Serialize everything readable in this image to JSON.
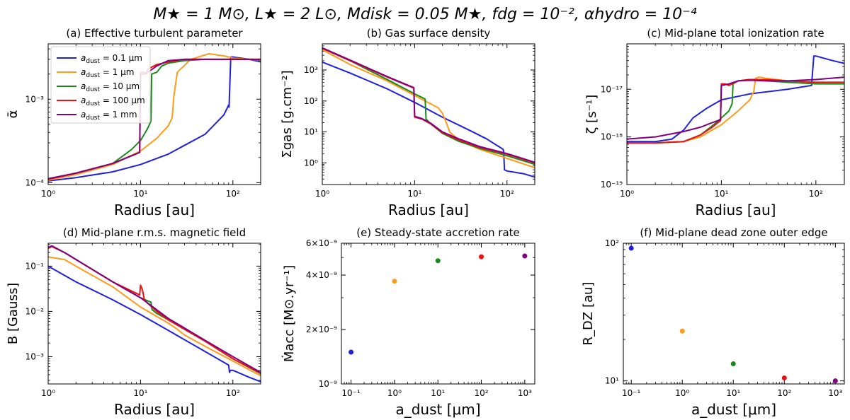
{
  "figure": {
    "suptitle": "M★ = 1 M⊙, L★ = 2 L⊙, Mdisk = 0.05 M★, fdg = 10⁻², αhydro = 10⁻⁴"
  },
  "legend": {
    "entries": [
      "a_dust = 0.1 μm",
      "a_dust = 1 μm",
      "a_dust = 10 μm",
      "a_dust = 100 μm",
      "a_dust = 1 mm"
    ],
    "prefix": "a",
    "subscript": "dust",
    "values": [
      " = 0.1 μm",
      " = 1 μm",
      " = 10 μm",
      " = 100 μm",
      " = 1 mm"
    ],
    "location": "upper-left of panel (a)"
  },
  "colors": {
    "0.1um": "#1f1fe0",
    "1um": "#ff9a1a",
    "10um": "#1a8a1a",
    "100um": "#ee1111",
    "1mm": "#800080"
  },
  "chart_data": [
    {
      "type": "line",
      "title": "(a) Effective turbulent parameter",
      "xlabel": "Radius [au]",
      "ylabel": "ᾱ",
      "xscale": "log",
      "yscale": "log",
      "xlim": [
        1,
        200
      ],
      "ylim": [
        9.5e-05,
        0.0046
      ],
      "xticks": [
        {
          "v": 1,
          "l": "10⁰"
        },
        {
          "v": 10,
          "l": "10¹"
        },
        {
          "v": 100,
          "l": "10²"
        }
      ],
      "yticks": [
        {
          "v": 0.0001,
          "l": "10⁻⁴"
        },
        {
          "v": 0.001,
          "l": "10⁻³"
        }
      ],
      "series": [
        {
          "name": "a_dust = 0.1 μm",
          "color": "#1f1fe0",
          "x": [
            1,
            2,
            5,
            10,
            20,
            50,
            80,
            90,
            91,
            95,
            100,
            150,
            200
          ],
          "y": [
            0.000105,
            0.000115,
            0.000135,
            0.000165,
            0.00022,
            0.00038,
            0.00065,
            0.00085,
            0.0008,
            0.0032,
            0.0032,
            0.003,
            0.0028
          ]
        },
        {
          "name": "a_dust = 1 μm",
          "color": "#ff9a1a",
          "x": [
            1,
            2,
            5,
            10,
            15,
            20,
            22,
            23,
            25,
            35,
            55,
            80,
            100,
            150,
            200
          ],
          "y": [
            0.000107,
            0.000125,
            0.000165,
            0.00024,
            0.00034,
            0.00048,
            0.0006,
            0.0011,
            0.0021,
            0.003,
            0.0035,
            0.0033,
            0.0031,
            0.003,
            0.0029
          ]
        },
        {
          "name": "a_dust = 10 μm",
          "color": "#1a8a1a",
          "x": [
            1,
            2,
            5,
            8,
            10,
            12,
            13,
            13.2,
            15,
            17,
            20,
            30,
            50,
            100,
            150,
            200
          ],
          "y": [
            0.00011,
            0.00013,
            0.00017,
            0.00025,
            0.00032,
            0.00045,
            0.00055,
            0.002,
            0.0021,
            0.0025,
            0.0027,
            0.0029,
            0.003,
            0.003,
            0.003,
            0.0029
          ]
        },
        {
          "name": "a_dust = 100 μm",
          "color": "#ee1111",
          "x": [
            1,
            2,
            5,
            8,
            9.8,
            10,
            11,
            11.5,
            12,
            15,
            20,
            30,
            50,
            100,
            200
          ],
          "y": [
            0.00011,
            0.00013,
            0.00017,
            0.00021,
            0.00023,
            0.0021,
            0.0021,
            0.002,
            0.0023,
            0.0026,
            0.0028,
            0.003,
            0.003,
            0.003,
            0.003
          ]
        },
        {
          "name": "a_dust = 1 mm",
          "color": "#800080",
          "x": [
            1,
            2,
            5,
            8,
            9.8,
            10,
            11,
            12,
            15,
            20,
            30,
            50,
            100,
            200
          ],
          "y": [
            0.000112,
            0.00013,
            0.00017,
            0.00021,
            0.00023,
            0.002,
            0.002,
            0.0021,
            0.0025,
            0.0029,
            0.003,
            0.003,
            0.003,
            0.003
          ]
        }
      ]
    },
    {
      "type": "line",
      "title": "(b) Gas surface density",
      "xlabel": "Radius [au]",
      "ylabel": "Σgas [g.cm⁻²]",
      "xscale": "log",
      "yscale": "log",
      "xlim": [
        1,
        200
      ],
      "ylim": [
        0.2,
        7000
      ],
      "xticks": [
        {
          "v": 1,
          "l": "10⁰"
        },
        {
          "v": 10,
          "l": "10¹"
        },
        {
          "v": 100,
          "l": "10²"
        }
      ],
      "yticks": [
        {
          "v": 1,
          "l": "10⁰"
        },
        {
          "v": 10,
          "l": "10¹"
        },
        {
          "v": 100,
          "l": "10²"
        },
        {
          "v": 1000,
          "l": "10³"
        }
      ],
      "series": [
        {
          "name": "a_dust = 0.1 μm",
          "color": "#1f1fe0",
          "x": [
            1,
            2,
            5,
            10,
            20,
            40,
            60,
            80,
            90,
            92,
            94,
            100,
            150,
            200
          ],
          "y": [
            1800,
            800,
            250,
            90,
            30,
            11,
            6,
            3.5,
            2.8,
            2.5,
            0.6,
            0.55,
            0.45,
            0.35
          ]
        },
        {
          "name": "a_dust = 1 μm",
          "color": "#ff9a1a",
          "x": [
            1,
            2,
            5,
            10,
            15,
            18,
            20,
            22,
            24,
            30,
            50,
            100,
            200
          ],
          "y": [
            4500,
            1500,
            450,
            150,
            80,
            60,
            40,
            20,
            10,
            5.5,
            2.8,
            1.4,
            0.7
          ]
        },
        {
          "name": "a_dust = 10 μm",
          "color": "#1a8a1a",
          "x": [
            1,
            2,
            5,
            10,
            12,
            13,
            13.3,
            15,
            20,
            30,
            50,
            100,
            200
          ],
          "y": [
            5000,
            2000,
            500,
            170,
            130,
            115,
            26,
            18,
            9,
            5,
            3,
            1.7,
            0.9
          ]
        },
        {
          "name": "a_dust = 100 μm",
          "color": "#ee1111",
          "x": [
            1,
            2,
            5,
            9.8,
            10,
            12,
            15,
            20,
            30,
            50,
            100,
            200
          ],
          "y": [
            5000,
            2000,
            600,
            260,
            30,
            26,
            18,
            9.5,
            5.5,
            3.2,
            1.9,
            1
          ]
        },
        {
          "name": "a_dust = 1 mm",
          "color": "#800080",
          "x": [
            1,
            2,
            5,
            9.8,
            10,
            12,
            15,
            20,
            30,
            50,
            100,
            200
          ],
          "y": [
            5200,
            2100,
            620,
            270,
            32,
            27,
            19,
            10,
            6,
            3.4,
            2,
            1.05
          ]
        }
      ]
    },
    {
      "type": "line",
      "title": "(c) Mid-plane total ionization rate",
      "xlabel": "Radius [au]",
      "ylabel": "ζ [s⁻¹]",
      "xscale": "log",
      "yscale": "log",
      "xlim": [
        1,
        200
      ],
      "ylim": [
        1e-19,
        9e-17
      ],
      "xticks": [
        {
          "v": 1,
          "l": "10⁰"
        },
        {
          "v": 10,
          "l": "10¹"
        },
        {
          "v": 100,
          "l": "10²"
        }
      ],
      "yticks": [
        {
          "v": 1e-19,
          "l": "10⁻¹⁹"
        },
        {
          "v": 1e-18,
          "l": "10⁻¹⁸"
        },
        {
          "v": 1e-17,
          "l": "10⁻¹⁷"
        }
      ],
      "series": [
        {
          "name": "a_dust = 0.1 μm",
          "color": "#1f1fe0",
          "x": [
            1,
            2,
            3,
            4,
            5,
            7,
            10,
            20,
            50,
            90,
            95,
            100,
            150,
            200
          ],
          "y": [
            8e-19,
            8e-19,
            9e-19,
            1.4e-18,
            2.5e-18,
            4e-18,
            6e-18,
            8e-18,
            1e-17,
            1.2e-17,
            5e-17,
            5e-17,
            4e-17,
            3.5e-17
          ]
        },
        {
          "name": "a_dust = 1 μm",
          "color": "#ff9a1a",
          "x": [
            1,
            2,
            4,
            6,
            10,
            15,
            20,
            22,
            23,
            25,
            30,
            50,
            100,
            200
          ],
          "y": [
            7.5e-19,
            7.5e-19,
            8e-19,
            1e-18,
            1.8e-18,
            3.5e-18,
            6e-18,
            9e-18,
            1.7e-17,
            1.8e-17,
            1.7e-17,
            1.5e-17,
            1.4e-17,
            1.4e-17
          ]
        },
        {
          "name": "a_dust = 10 μm",
          "color": "#1a8a1a",
          "x": [
            1,
            2,
            4,
            6,
            8,
            10,
            12,
            13,
            13.3,
            15,
            20,
            30,
            50,
            100,
            200
          ],
          "y": [
            7.5e-19,
            7.5e-19,
            8e-19,
            1.1e-18,
            1.7e-18,
            2.5e-18,
            3.5e-18,
            5e-18,
            1.3e-17,
            1.5e-17,
            1.6e-17,
            1.5e-17,
            1.4e-17,
            1.3e-17,
            1.3e-17
          ]
        },
        {
          "name": "a_dust = 100 μm",
          "color": "#ee1111",
          "x": [
            1,
            2,
            4,
            6,
            8,
            9.8,
            10,
            11,
            12,
            15,
            20,
            30,
            50,
            100,
            200
          ],
          "y": [
            7.5e-19,
            7.5e-19,
            8e-19,
            1.1e-18,
            1.6e-18,
            2.2e-18,
            1.3e-17,
            1.3e-17,
            1.2e-17,
            1.5e-17,
            1.6e-17,
            1.6e-17,
            1.5e-17,
            1.4e-17,
            1.4e-17
          ]
        },
        {
          "name": "a_dust = 1 mm",
          "color": "#800080",
          "x": [
            1,
            2,
            4,
            6,
            8,
            9.8,
            10,
            11,
            12,
            15,
            20,
            30,
            50,
            100,
            200
          ],
          "y": [
            9e-19,
            1e-18,
            1.3e-18,
            1.6e-18,
            2e-18,
            2.3e-18,
            1.2e-17,
            1.25e-17,
            1.3e-17,
            1.5e-17,
            1.55e-17,
            1.5e-17,
            1.5e-17,
            1.6e-17,
            1.8e-17
          ]
        }
      ]
    },
    {
      "type": "line",
      "title": "(d) Mid-plane r.m.s. magnetic field",
      "xlabel": "Radius [au]",
      "ylabel": "B [Gauss]",
      "xscale": "log",
      "yscale": "log",
      "xlim": [
        1,
        200
      ],
      "ylim": [
        0.00025,
        0.32
      ],
      "xticks": [
        {
          "v": 1,
          "l": "10⁰"
        },
        {
          "v": 10,
          "l": "10¹"
        },
        {
          "v": 100,
          "l": "10²"
        }
      ],
      "yticks": [
        {
          "v": 0.001,
          "l": "10⁻³"
        },
        {
          "v": 0.01,
          "l": "10⁻²"
        },
        {
          "v": 0.1,
          "l": "10⁻¹"
        }
      ],
      "series": [
        {
          "name": "a_dust = 0.1 μm",
          "color": "#1f1fe0",
          "x": [
            1,
            2,
            5,
            10,
            20,
            50,
            90,
            92,
            94,
            100,
            150,
            200
          ],
          "y": [
            0.1,
            0.045,
            0.018,
            0.0085,
            0.0038,
            0.0013,
            0.00065,
            0.00045,
            0.0005,
            0.0005,
            0.00035,
            0.00028
          ]
        },
        {
          "name": "a_dust = 1 μm",
          "color": "#ff9a1a",
          "x": [
            1,
            1.5,
            2,
            5,
            10,
            20,
            22,
            24,
            30,
            50,
            100,
            200
          ],
          "y": [
            0.16,
            0.14,
            0.1,
            0.035,
            0.0125,
            0.0055,
            0.0048,
            0.0043,
            0.003,
            0.0017,
            0.0008,
            0.00038
          ]
        },
        {
          "name": "a_dust = 10 μm",
          "color": "#1a8a1a",
          "x": [
            1,
            1.1,
            1.5,
            2,
            5,
            10,
            12,
            13,
            13.3,
            15,
            20,
            50,
            100,
            200
          ],
          "y": [
            0.25,
            0.27,
            0.2,
            0.14,
            0.045,
            0.02,
            0.017,
            0.016,
            0.011,
            0.009,
            0.0065,
            0.0022,
            0.0009,
            0.00042
          ]
        },
        {
          "name": "a_dust = 100 μm",
          "color": "#ee1111",
          "x": [
            1,
            1.1,
            1.5,
            2,
            5,
            9.8,
            10,
            10.5,
            11,
            12,
            15,
            20,
            50,
            100,
            200
          ],
          "y": [
            0.25,
            0.27,
            0.2,
            0.14,
            0.045,
            0.023,
            0.038,
            0.03,
            0.018,
            0.015,
            0.01,
            0.0065,
            0.0022,
            0.0009,
            0.00043
          ]
        },
        {
          "name": "a_dust = 1 mm",
          "color": "#800080",
          "x": [
            1,
            1.1,
            1.5,
            2,
            5,
            10,
            20,
            50,
            100,
            200
          ],
          "y": [
            0.26,
            0.28,
            0.2,
            0.14,
            0.045,
            0.02,
            0.007,
            0.0023,
            0.001,
            0.00045
          ]
        }
      ]
    },
    {
      "type": "scatter",
      "title": "(e) Steady-state accretion rate",
      "xlabel": "a_dust [μm]",
      "ylabel": "Ṁacc [M⊙.yr⁻¹]",
      "xscale": "log",
      "yscale": "log",
      "xlim": [
        0.06,
        1700
      ],
      "ylim": [
        1e-09,
        6e-09
      ],
      "xticks": [
        {
          "v": 0.1,
          "l": "10⁻¹"
        },
        {
          "v": 1,
          "l": "10⁰"
        },
        {
          "v": 10,
          "l": "10¹"
        },
        {
          "v": 100,
          "l": "10²"
        },
        {
          "v": 1000,
          "l": "10³"
        }
      ],
      "yticks": [
        {
          "v": 1e-09,
          "l": "10⁻⁹"
        },
        {
          "v": 2e-09,
          "l": "2×10⁻⁹"
        },
        {
          "v": 4e-09,
          "l": "4×10⁻⁹"
        },
        {
          "v": 6e-09,
          "l": "6×10⁻⁹"
        }
      ],
      "points": [
        {
          "x": 0.1,
          "y": 1.5e-09,
          "color": "#1f1fe0"
        },
        {
          "x": 1,
          "y": 3.7e-09,
          "color": "#ff9a1a"
        },
        {
          "x": 10,
          "y": 4.8e-09,
          "color": "#1a8a1a"
        },
        {
          "x": 100,
          "y": 5.05e-09,
          "color": "#ee1111"
        },
        {
          "x": 1000,
          "y": 5.1e-09,
          "color": "#800080"
        }
      ]
    },
    {
      "type": "scatter",
      "title": "(f) Mid-plane dead zone outer edge",
      "xlabel": "a_dust [μm]",
      "ylabel": "R_DZ [au]",
      "xscale": "log",
      "yscale": "log",
      "xlim": [
        0.07,
        1500
      ],
      "ylim": [
        9.5,
        100
      ],
      "xticks": [
        {
          "v": 0.1,
          "l": "10⁻¹"
        },
        {
          "v": 1,
          "l": "10⁰"
        },
        {
          "v": 10,
          "l": "10¹"
        },
        {
          "v": 100,
          "l": "10²"
        },
        {
          "v": 1000,
          "l": "10³"
        }
      ],
      "yticks": [
        {
          "v": 10,
          "l": "10¹"
        },
        {
          "v": 100,
          "l": "10²"
        }
      ],
      "points": [
        {
          "x": 0.1,
          "y": 92,
          "color": "#1f1fe0"
        },
        {
          "x": 1,
          "y": 23,
          "color": "#ff9a1a"
        },
        {
          "x": 10,
          "y": 13.3,
          "color": "#1a8a1a"
        },
        {
          "x": 100,
          "y": 10.5,
          "color": "#ee1111"
        },
        {
          "x": 1000,
          "y": 10,
          "color": "#800080"
        }
      ]
    }
  ]
}
